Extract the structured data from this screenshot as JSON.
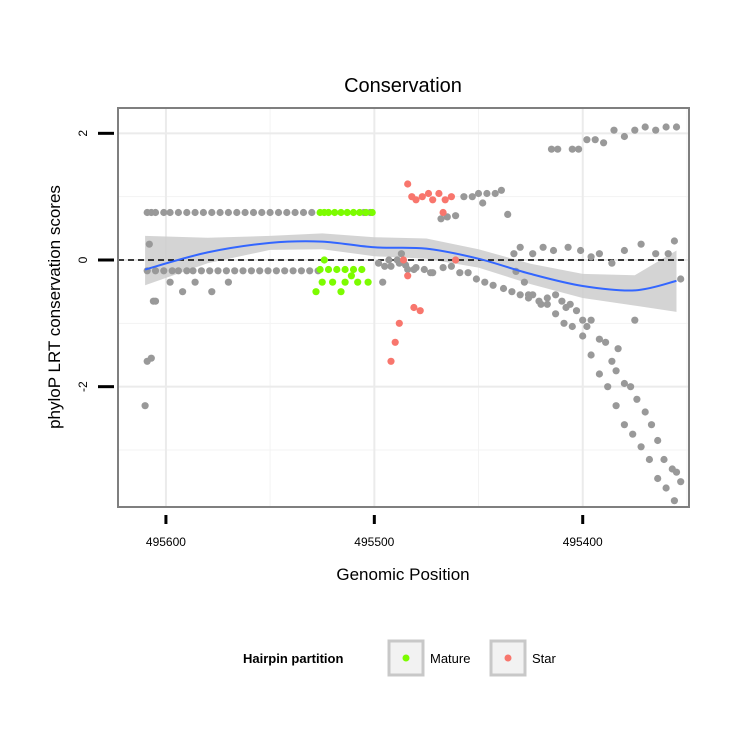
{
  "chart_data": {
    "type": "scatter",
    "title": "Conservation",
    "xlabel": "Genomic Position",
    "ylabel": "phyloP LRT conservation scores",
    "xlim": [
      495623,
      495349
    ],
    "ylim": [
      -3.9,
      2.4
    ],
    "x_reversed": true,
    "x_ticks": [
      495600,
      495500,
      495400
    ],
    "y_ticks": [
      -2,
      0,
      2
    ],
    "reference_line": {
      "y": 0,
      "style": "dashed"
    },
    "grid": true,
    "legend": {
      "title": "Hairpin partition",
      "placement": "bottom",
      "entries": [
        {
          "label": "Mature",
          "color": "#7cfc00"
        },
        {
          "label": "Star",
          "color": "#f8766d"
        }
      ]
    },
    "colors": {
      "other": "#999999",
      "Mature": "#7cfc00",
      "Star": "#f8766d",
      "smooth": "#3366ff",
      "ribbon": "#cccccc"
    },
    "smooth": {
      "x": [
        495610,
        495580,
        495550,
        495525,
        495500,
        495475,
        495450,
        495425,
        495400,
        495375,
        495355
      ],
      "y": [
        -0.15,
        0.12,
        0.27,
        0.29,
        0.2,
        0.18,
        0.02,
        -0.22,
        -0.41,
        -0.48,
        -0.33
      ],
      "lower": [
        -0.4,
        -0.05,
        0.16,
        0.17,
        0.06,
        0.02,
        -0.12,
        -0.38,
        -0.6,
        -0.72,
        -0.82
      ],
      "upper": [
        0.38,
        0.35,
        0.38,
        0.42,
        0.36,
        0.34,
        0.17,
        -0.06,
        -0.22,
        -0.24,
        0.15
      ]
    },
    "series": [
      {
        "key": "other",
        "x": [
          495609,
          495607,
          495605,
          495601,
          495598,
          495594,
          495590,
          495586,
          495582,
          495578,
          495574,
          495570,
          495566,
          495562,
          495558,
          495554,
          495550,
          495546,
          495542,
          495538,
          495534,
          495530,
          495505,
          495502,
          495609,
          495605,
          495601,
          495597,
          495594,
          495590,
          495587,
          495583,
          495579,
          495575,
          495571,
          495567,
          495563,
          495559,
          495555,
          495551,
          495547,
          495543,
          495539,
          495535,
          495531,
          495527,
          495598,
          495592,
          495586,
          495578,
          495570,
          495608,
          495606,
          495605,
          495609,
          495610,
          495607,
          495496,
          495493,
          495489,
          495487,
          495484,
          495480,
          495473,
          495468,
          495465,
          495461,
          495457,
          495453,
          495450,
          495446,
          495448,
          495442,
          495439,
          495436,
          495432,
          495428,
          495426,
          495424,
          495420,
          495417,
          495413,
          495410,
          495408,
          495406,
          495403,
          495400,
          495398,
          495396,
          495392,
          495389,
          495386,
          495384,
          495380,
          495377,
          495374,
          495370,
          495367,
          495364,
          495361,
          495357,
          495355,
          495353,
          495498,
          495495,
          495492,
          495488,
          495485,
          495481,
          495476,
          495472,
          495467,
          495463,
          495459,
          495455,
          495451,
          495447,
          495443,
          495438,
          495434,
          495430,
          495426,
          495421,
          495417,
          495413,
          495409,
          495405,
          495400,
          495396,
          495392,
          495388,
          495384,
          495380,
          495376,
          495372,
          495368,
          495364,
          495360,
          495356,
          495415,
          495412,
          495405,
          495402,
          495398,
          495394,
          495390,
          495385,
          495380,
          495375,
          495370,
          495365,
          495360,
          495355,
          495433,
          495430,
          495424,
          495419,
          495414,
          495407,
          495401,
          495396,
          495392,
          495386,
          495380,
          495372,
          495365,
          495359,
          495356,
          495353,
          495383,
          495375
        ],
        "y": [
          0.75,
          0.75,
          0.75,
          0.75,
          0.75,
          0.75,
          0.75,
          0.75,
          0.75,
          0.75,
          0.75,
          0.75,
          0.75,
          0.75,
          0.75,
          0.75,
          0.75,
          0.75,
          0.75,
          0.75,
          0.75,
          0.75,
          0.75,
          0.75,
          -0.17,
          -0.17,
          -0.17,
          -0.17,
          -0.17,
          -0.17,
          -0.17,
          -0.17,
          -0.17,
          -0.17,
          -0.17,
          -0.17,
          -0.17,
          -0.17,
          -0.17,
          -0.17,
          -0.17,
          -0.17,
          -0.17,
          -0.17,
          -0.17,
          -0.17,
          -0.35,
          -0.5,
          -0.35,
          -0.5,
          -0.35,
          0.25,
          -0.65,
          -0.65,
          -1.6,
          -2.3,
          -1.55,
          -0.35,
          0.0,
          0.0,
          0.1,
          -0.15,
          -0.12,
          -0.2,
          0.65,
          0.68,
          0.7,
          1.0,
          1.0,
          1.05,
          1.05,
          0.9,
          1.05,
          1.1,
          0.72,
          -0.18,
          -0.35,
          -0.55,
          -0.55,
          -0.7,
          -0.6,
          -0.55,
          -0.65,
          -0.75,
          -0.7,
          -0.8,
          -0.95,
          -1.05,
          -0.95,
          -1.25,
          -1.3,
          -1.6,
          -1.75,
          -1.95,
          -2.0,
          -2.2,
          -2.4,
          -2.6,
          -2.85,
          -3.15,
          -3.3,
          -3.35,
          -3.5,
          -0.05,
          -0.1,
          -0.1,
          -0.05,
          -0.08,
          -0.15,
          -0.15,
          -0.2,
          -0.12,
          -0.1,
          -0.2,
          -0.2,
          -0.3,
          -0.35,
          -0.4,
          -0.45,
          -0.5,
          -0.55,
          -0.6,
          -0.65,
          -0.7,
          -0.85,
          -1.0,
          -1.05,
          -1.2,
          -1.5,
          -1.8,
          -2.0,
          -2.3,
          -2.6,
          -2.75,
          -2.95,
          -3.15,
          -3.45,
          -3.6,
          -3.8,
          1.75,
          1.75,
          1.75,
          1.75,
          1.9,
          1.9,
          1.85,
          2.05,
          1.95,
          2.05,
          2.1,
          2.05,
          2.1,
          2.1,
          0.1,
          0.2,
          0.1,
          0.2,
          0.15,
          0.2,
          0.15,
          0.05,
          0.1,
          -0.05,
          0.15,
          0.25,
          0.1,
          0.1,
          0.3,
          -0.3,
          -1.4,
          -0.95
        ],
        "color": "#999999"
      },
      {
        "name": "Mature",
        "key": "Mature",
        "x": [
          495526,
          495524,
          495522,
          495519,
          495516,
          495513,
          495510,
          495507,
          495504,
          495501,
          495526,
          495522,
          495518,
          495514,
          495510,
          495506,
          495525,
          495520,
          495514,
          495508,
          495503,
          495528,
          495516,
          495524,
          495511
        ],
        "y": [
          0.75,
          0.75,
          0.75,
          0.75,
          0.75,
          0.75,
          0.75,
          0.75,
          0.75,
          0.75,
          -0.15,
          -0.15,
          -0.15,
          -0.15,
          -0.15,
          -0.15,
          -0.35,
          -0.35,
          -0.35,
          -0.35,
          -0.35,
          -0.5,
          -0.5,
          0.0,
          -0.25
        ],
        "color": "#7cfc00"
      },
      {
        "name": "Star",
        "key": "Star",
        "x": [
          495484,
          495482,
          495480,
          495477,
          495474,
          495472,
          495469,
          495466,
          495463,
          495467,
          495461,
          495486,
          495484,
          495481,
          495478,
          495488,
          495490,
          495492
        ],
        "y": [
          1.2,
          1.0,
          0.95,
          1.0,
          1.05,
          0.95,
          1.05,
          0.95,
          1.0,
          0.75,
          0.0,
          0.0,
          -0.25,
          -0.75,
          -0.8,
          -1.0,
          -1.3,
          -1.6
        ],
        "color": "#f8766d"
      }
    ]
  }
}
